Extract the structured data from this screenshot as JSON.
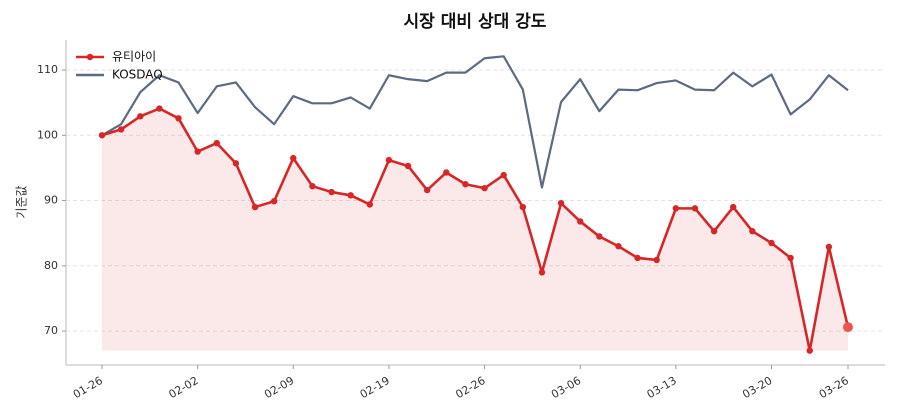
{
  "chart_data": {
    "type": "line",
    "title": "시장 대비 상대 강도",
    "y_label": "기준값",
    "categories": [
      "01-26",
      null,
      null,
      null,
      null,
      "02-02",
      null,
      null,
      null,
      null,
      "02-09",
      null,
      null,
      null,
      null,
      "02-19",
      null,
      null,
      null,
      null,
      "02-26",
      null,
      null,
      null,
      null,
      "03-06",
      null,
      null,
      null,
      null,
      "03-13",
      null,
      null,
      null,
      null,
      "03-20",
      null,
      null,
      null,
      "03-26"
    ],
    "series": [
      {
        "name": "유티아이",
        "color": "#d62728",
        "markers": true,
        "fill": true,
        "values": [
          100,
          100.9,
          102.9,
          104.1,
          102.6,
          97.5,
          98.8,
          95.7,
          89.0,
          89.9,
          96.5,
          92.2,
          91.3,
          90.8,
          89.4,
          96.2,
          95.3,
          91.6,
          94.3,
          92.5,
          91.9,
          93.9,
          89.0,
          79.0,
          89.6,
          86.8,
          84.5,
          83.0,
          81.2,
          80.9,
          88.8,
          88.8,
          85.3,
          89.0,
          85.3,
          83.5,
          81.2,
          67.0,
          82.9,
          70.6
        ]
      },
      {
        "name": "KOSDAQ",
        "color": "#5c6b80",
        "markers": false,
        "fill": false,
        "values": [
          100,
          101.7,
          106.6,
          109.2,
          108.1,
          103.4,
          107.5,
          108.1,
          104.3,
          101.7,
          106.0,
          104.9,
          104.9,
          105.8,
          104.1,
          109.2,
          108.6,
          108.3,
          109.6,
          109.6,
          111.8,
          112.1,
          107.0,
          92.0,
          105.1,
          108.6,
          103.7,
          107.0,
          106.9,
          108.0,
          108.4,
          107.0,
          106.9,
          109.6,
          107.5,
          109.3,
          103.2,
          105.5,
          109.2,
          106.9
        ]
      }
    ],
    "ylim": [
      64.8,
      114.6
    ],
    "yticks": [
      70,
      80,
      90,
      100,
      110
    ],
    "grid": true,
    "legend": "upper-left"
  }
}
